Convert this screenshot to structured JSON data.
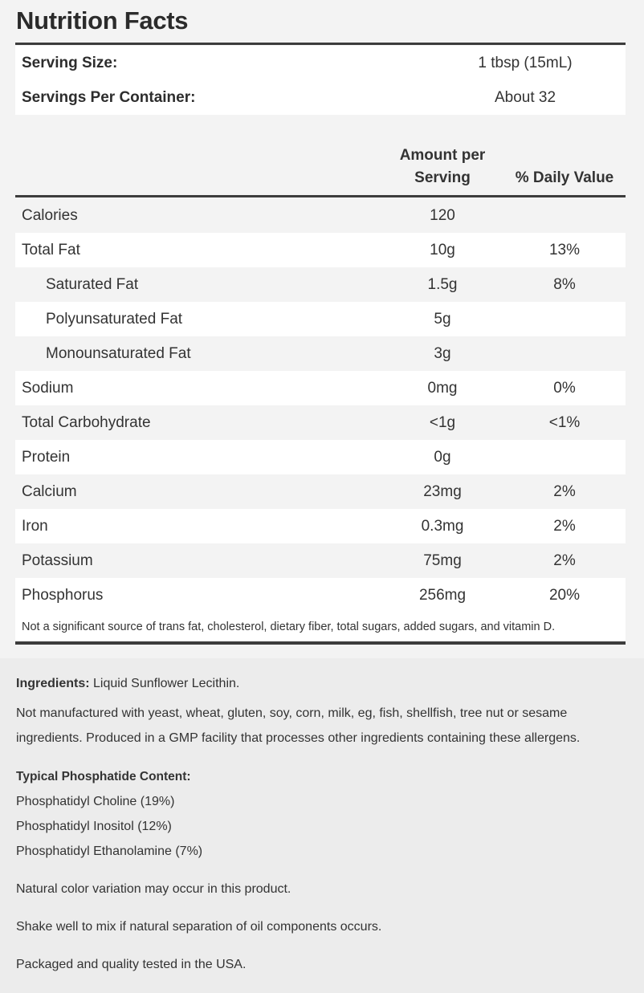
{
  "title": "Nutrition Facts",
  "serving": [
    {
      "label": "Serving Size:",
      "value": "1 tbsp (15mL)"
    },
    {
      "label": "Servings Per Container:",
      "value": "About 32"
    }
  ],
  "headers": {
    "amount_line1": "Amount per",
    "amount_line2": "Serving",
    "daily_value": "% Daily Value"
  },
  "nutrients": [
    {
      "name": "Calories",
      "amount": "120",
      "dv": ""
    },
    {
      "name": "Total Fat",
      "amount": "10g",
      "dv": "13%"
    },
    {
      "name": "Saturated Fat",
      "amount": "1.5g",
      "dv": "8%"
    },
    {
      "name": "Polyunsaturated Fat",
      "amount": "5g",
      "dv": ""
    },
    {
      "name": "Monounsaturated Fat",
      "amount": "3g",
      "dv": ""
    },
    {
      "name": "Sodium",
      "amount": "0mg",
      "dv": "0%"
    },
    {
      "name": "Total Carbohydrate",
      "amount": "<1g",
      "dv": "<1%"
    },
    {
      "name": "Protein",
      "amount": "0g",
      "dv": ""
    },
    {
      "name": "Calcium",
      "amount": "23mg",
      "dv": "2%"
    },
    {
      "name": "Iron",
      "amount": "0.3mg",
      "dv": "2%"
    },
    {
      "name": "Potassium",
      "amount": "75mg",
      "dv": "2%"
    },
    {
      "name": "Phosphorus",
      "amount": "256mg",
      "dv": "20%"
    }
  ],
  "footnote": "Not a significant source of trans fat, cholesterol, dietary fiber, total sugars, added sugars, and vitamin D.",
  "ingredients": {
    "label": "Ingredients:",
    "text": "Liquid Sunflower Lecithin."
  },
  "allergen_line1": "Not manufactured with yeast, wheat, gluten, soy, corn, milk, eg, fish, shellfish, tree nut  or sesame",
  "allergen_line2": "ingredients. Produced in a GMP facility that processes other ingredients containing these allergens.",
  "phosphatide": {
    "heading": "Typical Phosphatide Content:",
    "items": [
      "Phosphatidyl Choline (19%)",
      "Phosphatidyl Inositol (12%)",
      "Phosphatidyl Ethanolamine (7%)"
    ]
  },
  "notes": [
    "Natural color variation may occur in this product.",
    "Shake well to mix if natural separation of oil components occurs.",
    "Packaged and quality tested in the USA."
  ]
}
